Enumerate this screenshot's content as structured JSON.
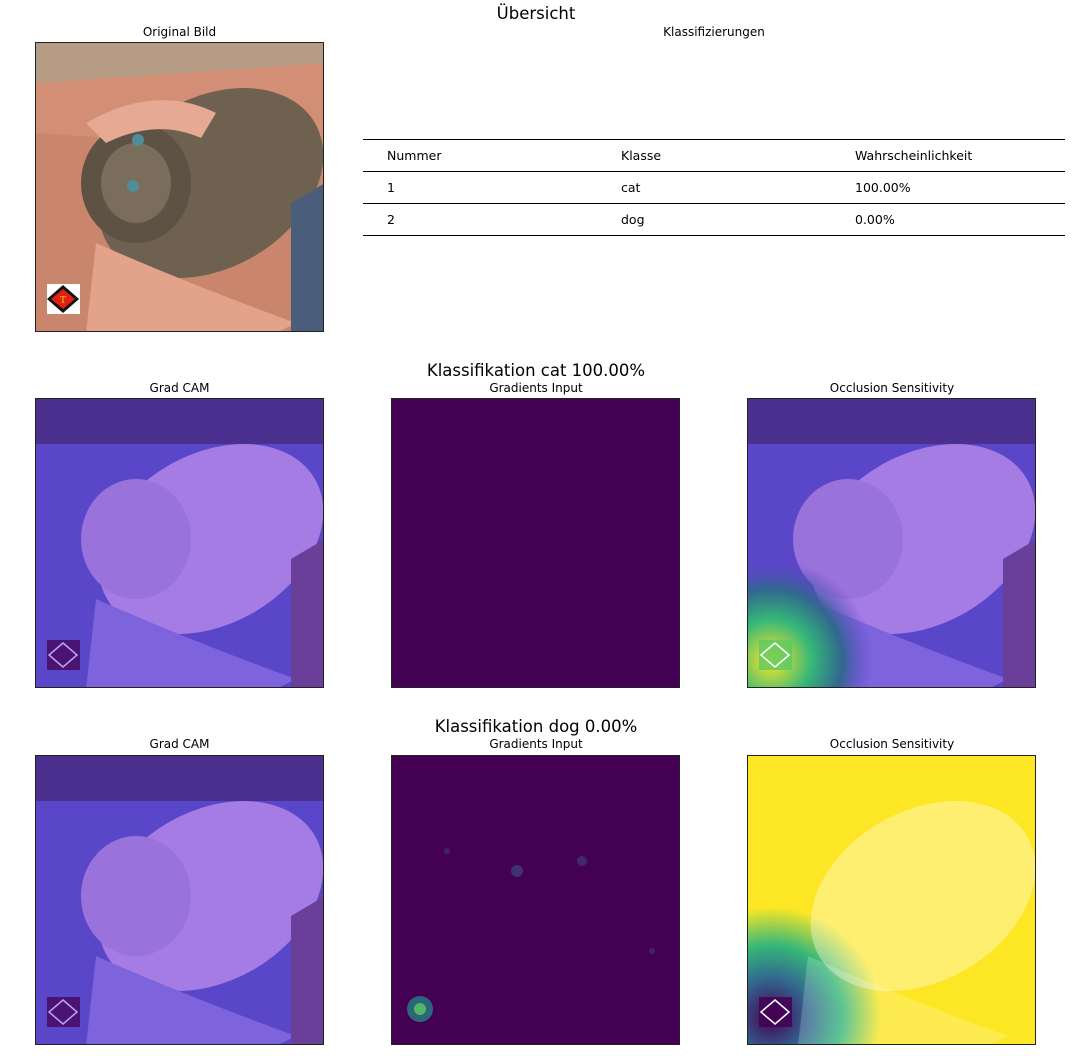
{
  "figure": {
    "title": "Übersicht"
  },
  "original": {
    "title": "Original Bild"
  },
  "table": {
    "title": "Klassifizierungen",
    "headers": [
      "Nummer",
      "Klasse",
      "Wahrscheinlichkeit"
    ],
    "rows": [
      [
        "1",
        "cat",
        "100.00%"
      ],
      [
        "2",
        "dog",
        "0.00%"
      ]
    ]
  },
  "section_cat": {
    "title": "Klassifikation cat 100.00%",
    "panels": [
      "Grad CAM",
      "Gradients Input",
      "Occlusion Sensitivity"
    ]
  },
  "section_dog": {
    "title": "Klassifikation dog 0.00%",
    "panels": [
      "Grad CAM",
      "Gradients Input",
      "Occlusion Sensitivity"
    ]
  },
  "colors": {
    "viridis_dark": "#440154",
    "viridis_teal": "#21918c",
    "viridis_yellow": "#fde725",
    "overlay_purple": "#7b4fd6"
  }
}
